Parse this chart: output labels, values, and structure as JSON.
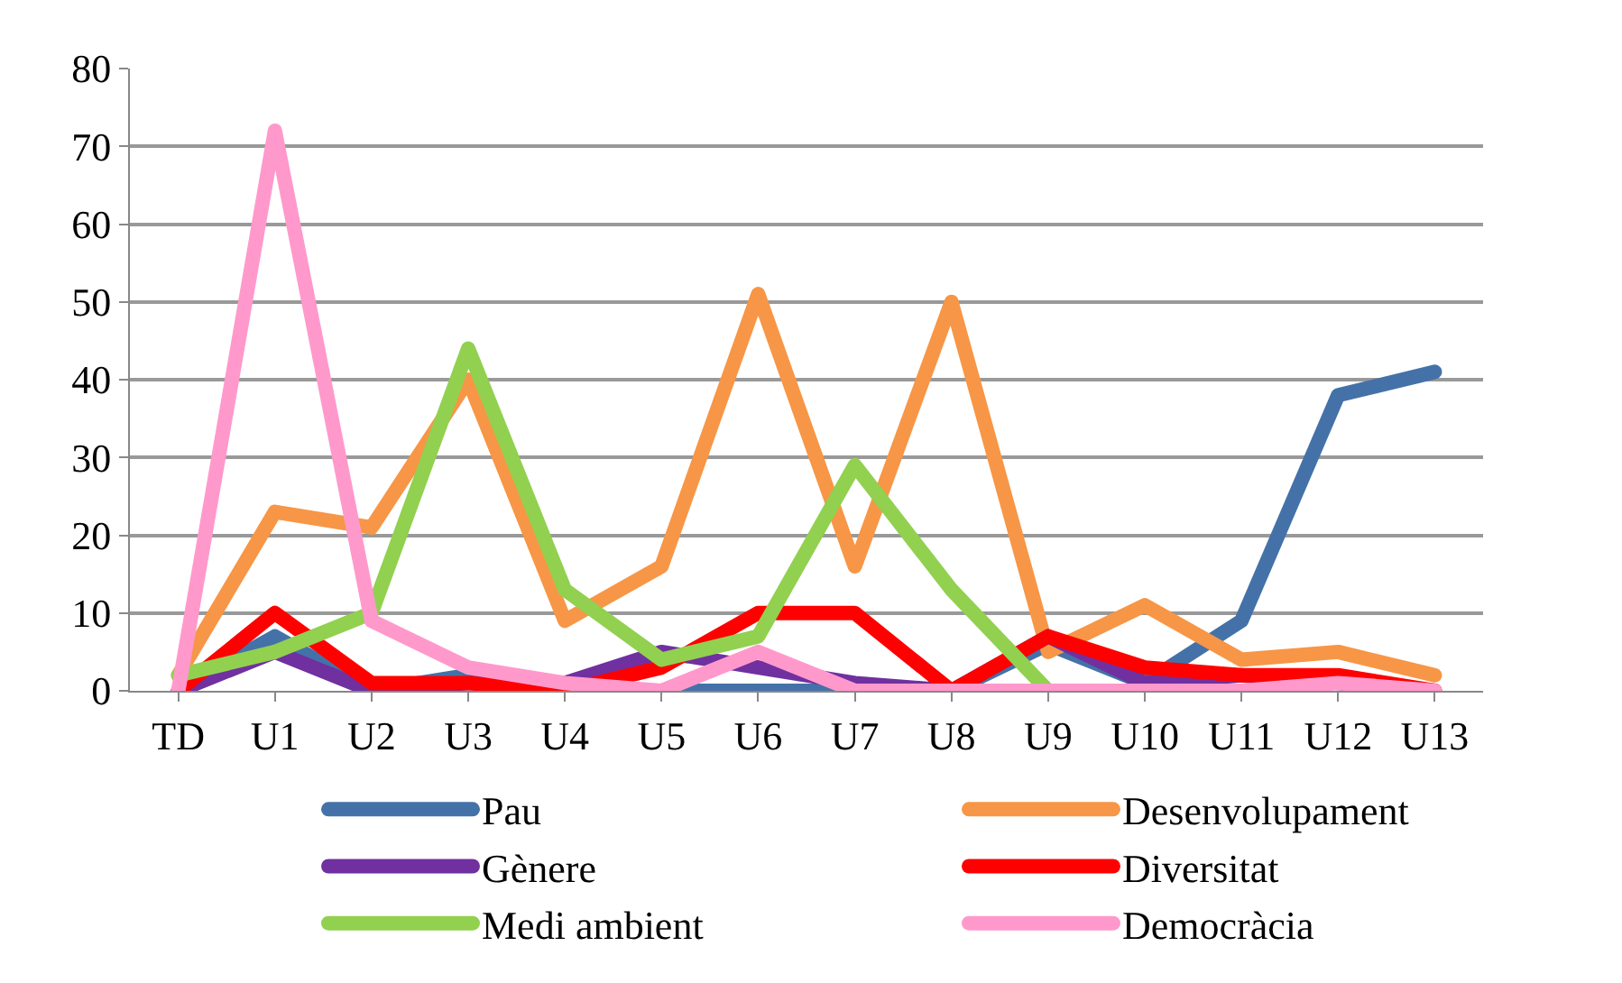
{
  "chart_data": {
    "type": "line",
    "categories": [
      "TD",
      "U1",
      "U2",
      "U3",
      "U4",
      "U5",
      "U6",
      "U7",
      "U8",
      "U9",
      "U10",
      "U11",
      "U12",
      "U13"
    ],
    "series": [
      {
        "name": "Pau",
        "color": "#4472a8",
        "values": [
          0,
          7,
          0,
          2,
          0,
          0,
          0,
          0,
          0,
          6,
          1,
          9,
          38,
          41
        ]
      },
      {
        "name": "Desenvolupament",
        "color": "#f79646",
        "values": [
          2,
          23,
          21,
          40,
          9,
          16,
          51,
          16,
          50,
          5,
          11,
          4,
          5,
          2
        ]
      },
      {
        "name": "Gènere",
        "color": "#7030a0",
        "values": [
          0,
          5,
          0,
          1,
          1,
          5,
          3,
          1,
          0,
          7,
          1,
          2,
          1,
          0
        ]
      },
      {
        "name": "Diversitat",
        "color": "#ff0000",
        "values": [
          0,
          10,
          1,
          1,
          0,
          3,
          10,
          10,
          0,
          7,
          3,
          2,
          2,
          0
        ]
      },
      {
        "name": "Medi ambient",
        "color": "#92d050",
        "values": [
          2,
          5,
          10,
          44,
          13,
          4,
          7,
          29,
          13,
          0,
          0,
          null,
          null,
          null
        ]
      },
      {
        "name": "Democràcia",
        "color": "#ff99cc",
        "values": [
          0,
          72,
          9,
          3,
          1,
          0,
          5,
          0,
          0,
          0,
          0,
          0,
          1,
          0
        ]
      }
    ],
    "ylim": [
      0,
      80
    ],
    "yticks": [
      0,
      10,
      20,
      30,
      40,
      50,
      60,
      70,
      80
    ],
    "grid": "y",
    "legend": "bottom",
    "marker": "none",
    "line_style": "solid"
  }
}
